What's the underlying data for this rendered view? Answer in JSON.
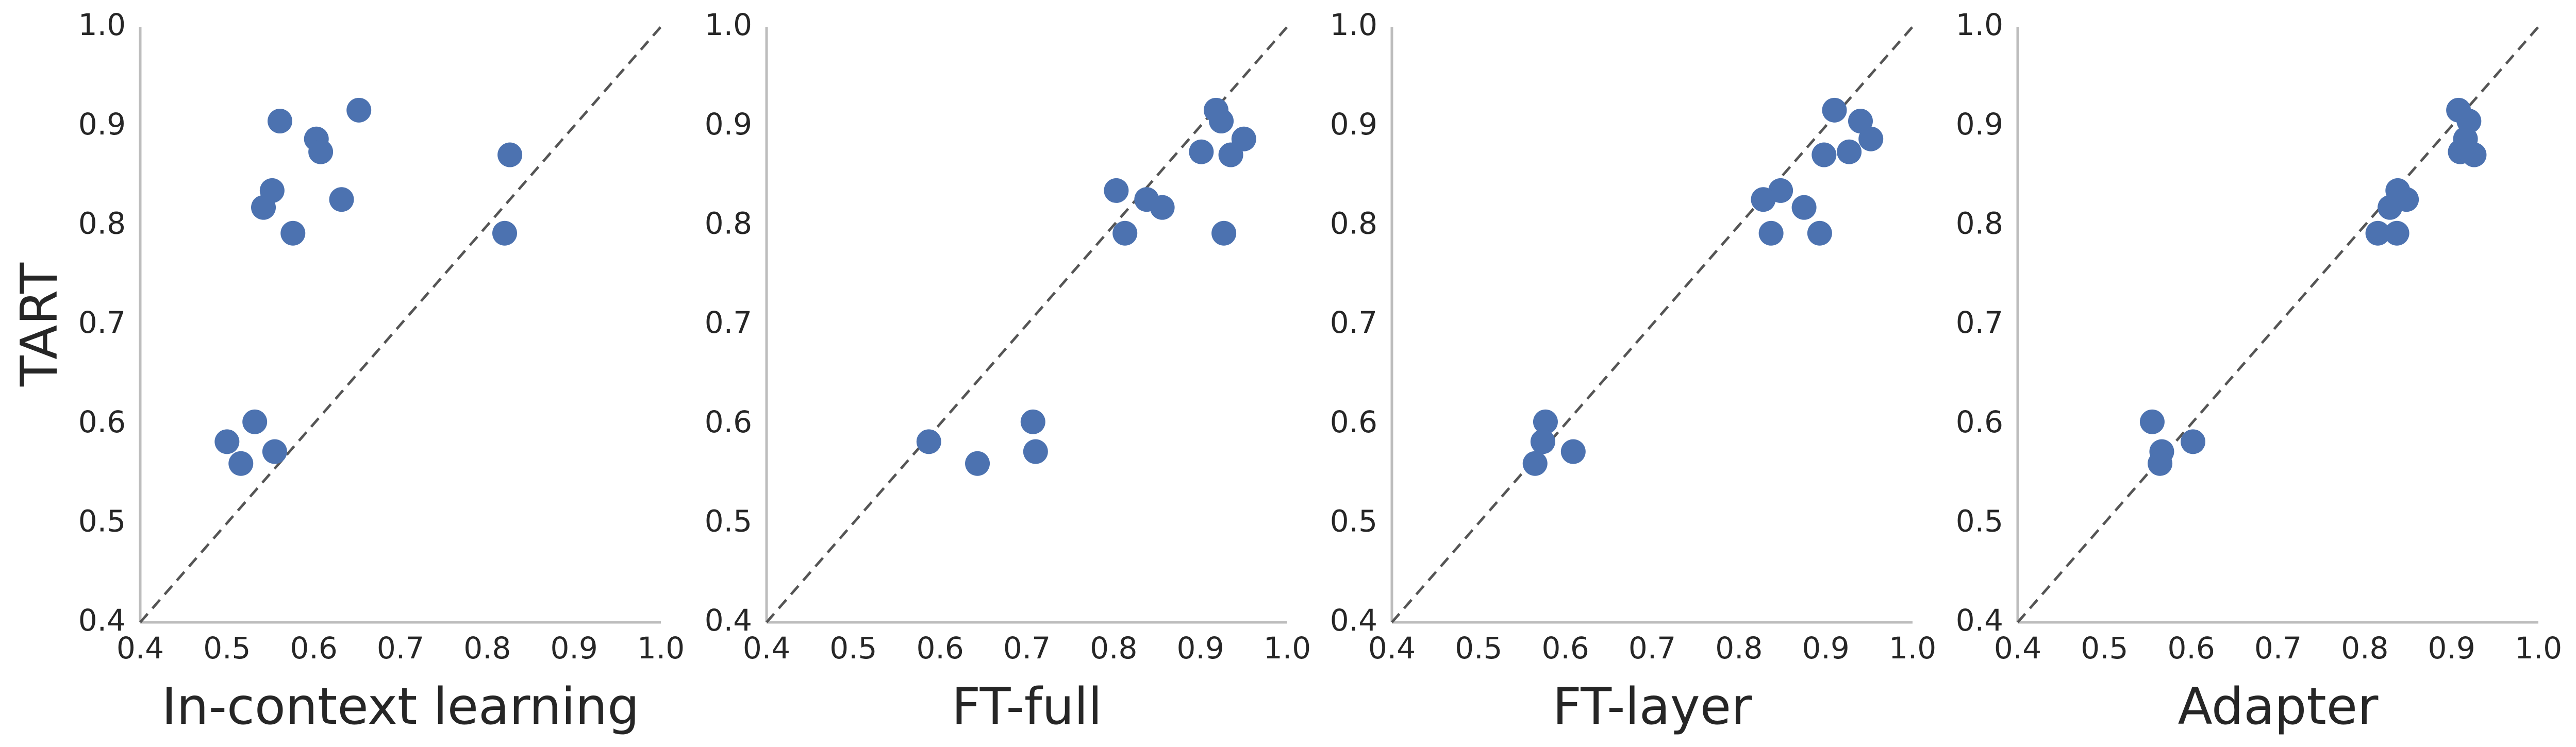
{
  "chart_data": [
    {
      "type": "scatter",
      "xlabel": "In-context learning",
      "ylabel": "TART",
      "xlim": [
        0.4,
        1.0
      ],
      "ylim": [
        0.4,
        1.0
      ],
      "xticks": [
        "0.4",
        "0.5",
        "0.6",
        "0.7",
        "0.8",
        "0.9",
        "1.0"
      ],
      "yticks": [
        "0.4",
        "0.5",
        "0.6",
        "0.7",
        "0.8",
        "0.9",
        "1.0"
      ],
      "diagonal": true,
      "grid": false,
      "color": "#4c72b0",
      "points": [
        {
          "x": 0.561,
          "y": 0.905
        },
        {
          "x": 0.652,
          "y": 0.916
        },
        {
          "x": 0.603,
          "y": 0.887
        },
        {
          "x": 0.608,
          "y": 0.874
        },
        {
          "x": 0.552,
          "y": 0.835
        },
        {
          "x": 0.542,
          "y": 0.818
        },
        {
          "x": 0.632,
          "y": 0.826
        },
        {
          "x": 0.576,
          "y": 0.792
        },
        {
          "x": 0.826,
          "y": 0.871
        },
        {
          "x": 0.82,
          "y": 0.792
        },
        {
          "x": 0.532,
          "y": 0.602
        },
        {
          "x": 0.5,
          "y": 0.582
        },
        {
          "x": 0.555,
          "y": 0.572
        },
        {
          "x": 0.516,
          "y": 0.56
        }
      ]
    },
    {
      "type": "scatter",
      "xlabel": "FT-full",
      "ylabel": "",
      "xlim": [
        0.4,
        1.0
      ],
      "ylim": [
        0.4,
        1.0
      ],
      "xticks": [
        "0.4",
        "0.5",
        "0.6",
        "0.7",
        "0.8",
        "0.9",
        "1.0"
      ],
      "yticks": [
        "0.4",
        "0.5",
        "0.6",
        "0.7",
        "0.8",
        "0.9",
        "1.0"
      ],
      "diagonal": true,
      "grid": false,
      "color": "#4c72b0",
      "points": [
        {
          "x": 0.918,
          "y": 0.916
        },
        {
          "x": 0.924,
          "y": 0.905
        },
        {
          "x": 0.95,
          "y": 0.887
        },
        {
          "x": 0.901,
          "y": 0.874
        },
        {
          "x": 0.935,
          "y": 0.871
        },
        {
          "x": 0.803,
          "y": 0.835
        },
        {
          "x": 0.838,
          "y": 0.826
        },
        {
          "x": 0.856,
          "y": 0.818
        },
        {
          "x": 0.813,
          "y": 0.792
        },
        {
          "x": 0.927,
          "y": 0.792
        },
        {
          "x": 0.707,
          "y": 0.602
        },
        {
          "x": 0.71,
          "y": 0.572
        },
        {
          "x": 0.587,
          "y": 0.582
        },
        {
          "x": 0.643,
          "y": 0.56
        }
      ]
    },
    {
      "type": "scatter",
      "xlabel": "FT-layer",
      "ylabel": "",
      "xlim": [
        0.4,
        1.0
      ],
      "ylim": [
        0.4,
        1.0
      ],
      "xticks": [
        "0.4",
        "0.5",
        "0.6",
        "0.7",
        "0.8",
        "0.9",
        "1.0"
      ],
      "yticks": [
        "0.4",
        "0.5",
        "0.6",
        "0.7",
        "0.8",
        "0.9",
        "1.0"
      ],
      "diagonal": true,
      "grid": false,
      "color": "#4c72b0",
      "points": [
        {
          "x": 0.91,
          "y": 0.916
        },
        {
          "x": 0.94,
          "y": 0.905
        },
        {
          "x": 0.952,
          "y": 0.887
        },
        {
          "x": 0.927,
          "y": 0.874
        },
        {
          "x": 0.898,
          "y": 0.871
        },
        {
          "x": 0.848,
          "y": 0.835
        },
        {
          "x": 0.828,
          "y": 0.826
        },
        {
          "x": 0.875,
          "y": 0.818
        },
        {
          "x": 0.837,
          "y": 0.792
        },
        {
          "x": 0.893,
          "y": 0.792
        },
        {
          "x": 0.577,
          "y": 0.602
        },
        {
          "x": 0.574,
          "y": 0.582
        },
        {
          "x": 0.609,
          "y": 0.572
        },
        {
          "x": 0.565,
          "y": 0.56
        }
      ]
    },
    {
      "type": "scatter",
      "xlabel": "Adapter",
      "ylabel": "",
      "xlim": [
        0.4,
        1.0
      ],
      "ylim": [
        0.4,
        1.0
      ],
      "xticks": [
        "0.4",
        "0.5",
        "0.6",
        "0.7",
        "0.8",
        "0.9",
        "1.0"
      ],
      "yticks": [
        "0.4",
        "0.5",
        "0.6",
        "0.7",
        "0.8",
        "0.9",
        "1.0"
      ],
      "diagonal": true,
      "grid": false,
      "color": "#4c72b0",
      "points": [
        {
          "x": 0.908,
          "y": 0.916
        },
        {
          "x": 0.92,
          "y": 0.905
        },
        {
          "x": 0.916,
          "y": 0.887
        },
        {
          "x": 0.91,
          "y": 0.874
        },
        {
          "x": 0.926,
          "y": 0.871
        },
        {
          "x": 0.838,
          "y": 0.835
        },
        {
          "x": 0.848,
          "y": 0.826
        },
        {
          "x": 0.829,
          "y": 0.818
        },
        {
          "x": 0.815,
          "y": 0.792
        },
        {
          "x": 0.837,
          "y": 0.792
        },
        {
          "x": 0.555,
          "y": 0.602
        },
        {
          "x": 0.602,
          "y": 0.582
        },
        {
          "x": 0.566,
          "y": 0.572
        },
        {
          "x": 0.564,
          "y": 0.56
        }
      ]
    }
  ]
}
